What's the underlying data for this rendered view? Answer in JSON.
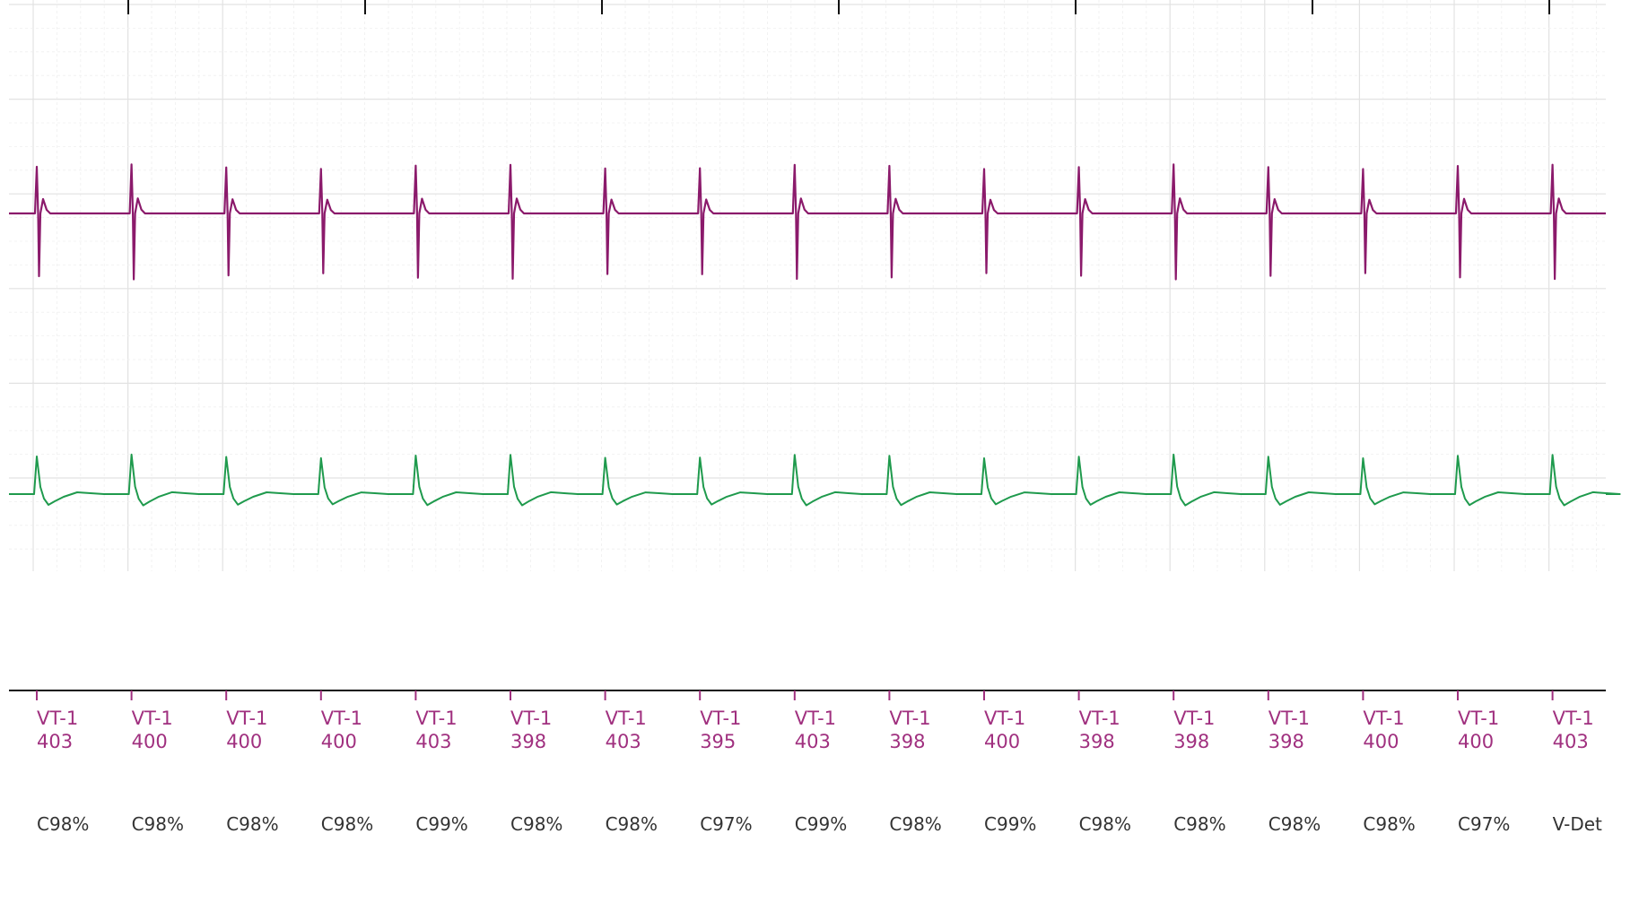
{
  "chart_data": {
    "type": "line",
    "grid": true,
    "channels": [
      {
        "color": "#8b1a6b",
        "waveform": "morphology-a"
      },
      {
        "color": "#1f9a4d",
        "waveform": "morphology-b"
      }
    ],
    "beats": [
      {
        "zone": "VT-1",
        "interval_ms": 403,
        "correlation": "C98%"
      },
      {
        "zone": "VT-1",
        "interval_ms": 400,
        "correlation": "C98%"
      },
      {
        "zone": "VT-1",
        "interval_ms": 400,
        "correlation": "C98%"
      },
      {
        "zone": "VT-1",
        "interval_ms": 400,
        "correlation": "C98%"
      },
      {
        "zone": "VT-1",
        "interval_ms": 403,
        "correlation": "C99%"
      },
      {
        "zone": "VT-1",
        "interval_ms": 398,
        "correlation": "C98%"
      },
      {
        "zone": "VT-1",
        "interval_ms": 403,
        "correlation": "C98%"
      },
      {
        "zone": "VT-1",
        "interval_ms": 395,
        "correlation": "C97%"
      },
      {
        "zone": "VT-1",
        "interval_ms": 403,
        "correlation": "C99%"
      },
      {
        "zone": "VT-1",
        "interval_ms": 398,
        "correlation": "C98%"
      },
      {
        "zone": "VT-1",
        "interval_ms": 400,
        "correlation": "C99%"
      },
      {
        "zone": "VT-1",
        "interval_ms": 398,
        "correlation": "C98%"
      },
      {
        "zone": "VT-1",
        "interval_ms": 398,
        "correlation": "C98%"
      },
      {
        "zone": "VT-1",
        "interval_ms": 398,
        "correlation": "C98%"
      },
      {
        "zone": "VT-1",
        "interval_ms": 400,
        "correlation": "C98%"
      },
      {
        "zone": "VT-1",
        "interval_ms": 400,
        "correlation": "C97%"
      },
      {
        "zone": "VT-1",
        "interval_ms": 403,
        "correlation": "V-Det"
      }
    ]
  },
  "colors": {
    "marker_text": "#a0307f",
    "correlation_text": "#333333",
    "grid_major": "#e2e2e2",
    "grid_minor": "#efefef"
  }
}
